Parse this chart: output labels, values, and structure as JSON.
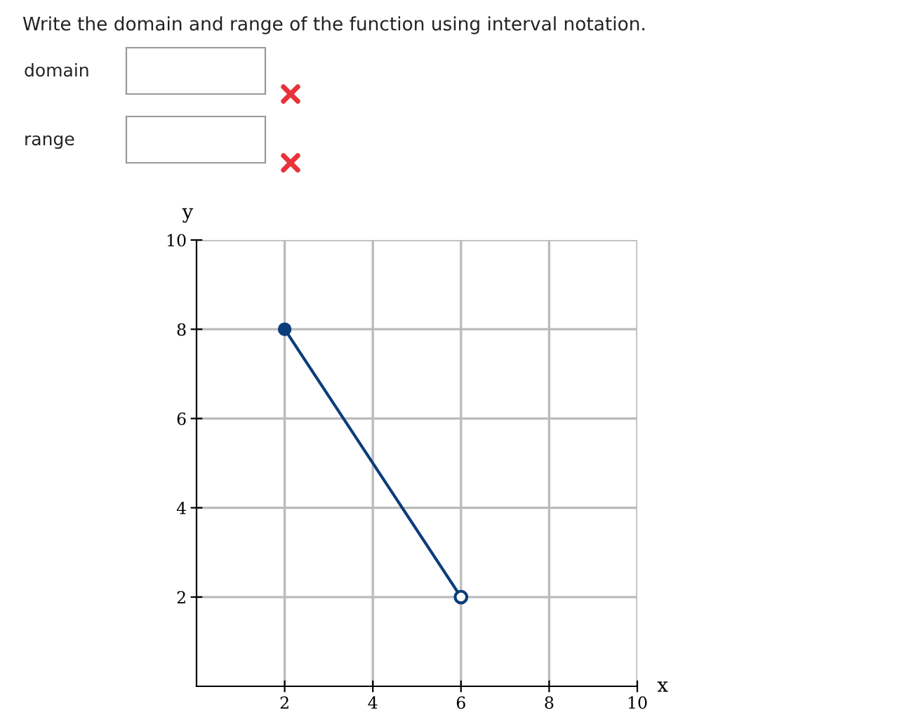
{
  "chart_data": {
    "type": "line",
    "title": "Write the domain and range of the function using interval notation.",
    "annotations": [
      "domain",
      "range"
    ],
    "xlabel": "x",
    "ylabel": "y",
    "series": [
      {
        "x": [
          2,
          6
        ],
        "values": [
          8,
          2
        ],
        "color": "#0b3d7a"
      }
    ],
    "marker": "circle",
    "xlim": [
      0,
      10
    ],
    "ylim": [
      0,
      10
    ],
    "xticks": [
      2,
      4,
      6,
      8,
      10
    ],
    "yticks": [
      2,
      4,
      6,
      8,
      10
    ],
    "grid": true
  }
}
